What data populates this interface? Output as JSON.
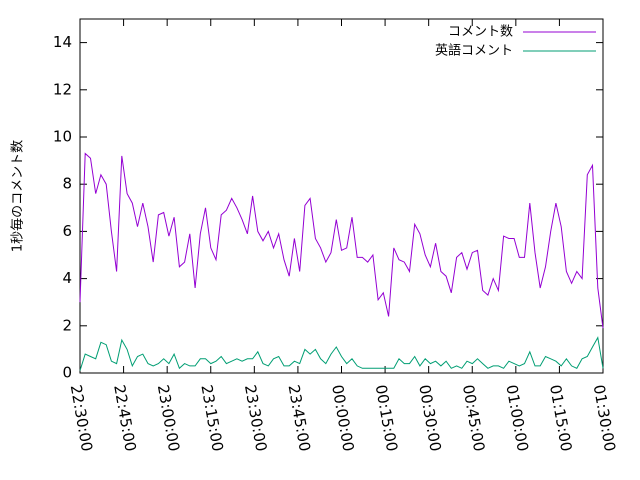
{
  "chart_data": {
    "type": "line",
    "y_label": "1秒毎のコメント数",
    "x": [
      "22:30:00",
      "22:31:48",
      "22:33:36",
      "22:35:24",
      "22:37:12",
      "22:39:00",
      "22:40:48",
      "22:42:36",
      "22:44:24",
      "22:46:12",
      "22:48:00",
      "22:49:48",
      "22:51:36",
      "22:53:24",
      "22:55:12",
      "22:57:00",
      "22:58:48",
      "23:00:36",
      "23:02:24",
      "23:04:12",
      "23:06:00",
      "23:07:48",
      "23:09:36",
      "23:11:24",
      "23:13:12",
      "23:15:00",
      "23:16:48",
      "23:18:36",
      "23:20:24",
      "23:22:12",
      "23:24:00",
      "23:25:48",
      "23:27:36",
      "23:29:24",
      "23:31:12",
      "23:33:00",
      "23:34:48",
      "23:36:36",
      "23:38:24",
      "23:40:12",
      "23:42:00",
      "23:43:48",
      "23:45:36",
      "23:47:24",
      "23:49:12",
      "23:51:00",
      "23:52:48",
      "23:54:36",
      "23:56:24",
      "23:58:12",
      "00:00:00",
      "00:01:48",
      "00:03:36",
      "00:05:24",
      "00:07:12",
      "00:09:00",
      "00:10:48",
      "00:12:36",
      "00:14:24",
      "00:16:12",
      "00:18:00",
      "00:19:48",
      "00:21:36",
      "00:23:24",
      "00:25:12",
      "00:27:00",
      "00:28:48",
      "00:30:36",
      "00:32:24",
      "00:34:12",
      "00:36:00",
      "00:37:48",
      "00:39:36",
      "00:41:24",
      "00:43:12",
      "00:45:00",
      "00:46:48",
      "00:48:36",
      "00:50:24",
      "00:52:12",
      "00:54:00",
      "00:55:48",
      "00:57:36",
      "00:59:24",
      "01:01:12",
      "01:03:00",
      "01:04:48",
      "01:06:36",
      "01:08:24",
      "01:10:12",
      "01:12:00",
      "01:13:48",
      "01:15:36",
      "01:17:24",
      "01:19:12",
      "01:21:00",
      "01:22:48",
      "01:24:36",
      "01:26:24",
      "01:28:12",
      "01:30:00"
    ],
    "series": [
      {
        "name": "コメント数",
        "color": "#9400d3",
        "values": [
          3.0,
          9.3,
          9.1,
          7.6,
          8.4,
          8.0,
          6.0,
          4.3,
          9.2,
          7.6,
          7.2,
          6.2,
          7.2,
          6.2,
          4.7,
          6.7,
          6.8,
          5.8,
          6.6,
          4.5,
          4.7,
          5.9,
          3.6,
          5.9,
          7.0,
          5.3,
          4.8,
          6.7,
          6.9,
          7.4,
          7.0,
          6.5,
          5.9,
          7.5,
          6.0,
          5.6,
          6.0,
          5.3,
          5.9,
          4.8,
          4.1,
          5.7,
          4.3,
          7.1,
          7.4,
          5.7,
          5.3,
          4.7,
          5.1,
          6.5,
          5.2,
          5.3,
          6.6,
          4.9,
          4.9,
          4.7,
          5.0,
          3.1,
          3.4,
          2.4,
          5.3,
          4.8,
          4.7,
          4.3,
          6.3,
          5.9,
          5.0,
          4.5,
          5.5,
          4.3,
          4.1,
          3.4,
          4.9,
          5.1,
          4.4,
          5.1,
          5.2,
          3.5,
          3.3,
          4.0,
          3.5,
          5.8,
          5.7,
          5.7,
          4.9,
          4.9,
          7.2,
          5.1,
          3.6,
          4.5,
          6.0,
          7.2,
          6.2,
          4.3,
          3.8,
          4.3,
          4.0,
          8.4,
          8.8,
          3.6,
          1.9
        ]
      },
      {
        "name": "英語コメント",
        "color": "#009e73",
        "values": [
          0.1,
          0.8,
          0.7,
          0.6,
          1.3,
          1.2,
          0.5,
          0.4,
          1.4,
          1.0,
          0.3,
          0.7,
          0.8,
          0.4,
          0.3,
          0.4,
          0.6,
          0.4,
          0.8,
          0.2,
          0.4,
          0.3,
          0.3,
          0.6,
          0.6,
          0.4,
          0.5,
          0.7,
          0.4,
          0.5,
          0.6,
          0.5,
          0.6,
          0.6,
          0.9,
          0.4,
          0.3,
          0.6,
          0.7,
          0.3,
          0.3,
          0.5,
          0.4,
          1.0,
          0.8,
          1.0,
          0.6,
          0.4,
          0.8,
          1.1,
          0.7,
          0.4,
          0.6,
          0.3,
          0.2,
          0.2,
          0.2,
          0.2,
          0.2,
          0.2,
          0.2,
          0.6,
          0.4,
          0.4,
          0.7,
          0.3,
          0.6,
          0.4,
          0.5,
          0.3,
          0.5,
          0.2,
          0.3,
          0.2,
          0.5,
          0.4,
          0.6,
          0.4,
          0.2,
          0.3,
          0.3,
          0.2,
          0.5,
          0.4,
          0.3,
          0.4,
          0.9,
          0.3,
          0.3,
          0.7,
          0.6,
          0.5,
          0.3,
          0.6,
          0.3,
          0.2,
          0.6,
          0.7,
          1.1,
          1.5,
          0.2
        ]
      }
    ],
    "xlim": [
      "22:30:00",
      "01:30:00"
    ],
    "xticks": [
      "22:30:00",
      "22:45:00",
      "23:00:00",
      "23:15:00",
      "23:30:00",
      "23:45:00",
      "00:00:00",
      "00:15:00",
      "00:30:00",
      "00:45:00",
      "01:00:00",
      "01:15:00",
      "01:30:00"
    ],
    "ylim": [
      0,
      15
    ],
    "yticks": [
      0,
      2,
      4,
      6,
      8,
      10,
      12,
      14
    ],
    "legend": "top-right",
    "grid": false
  }
}
